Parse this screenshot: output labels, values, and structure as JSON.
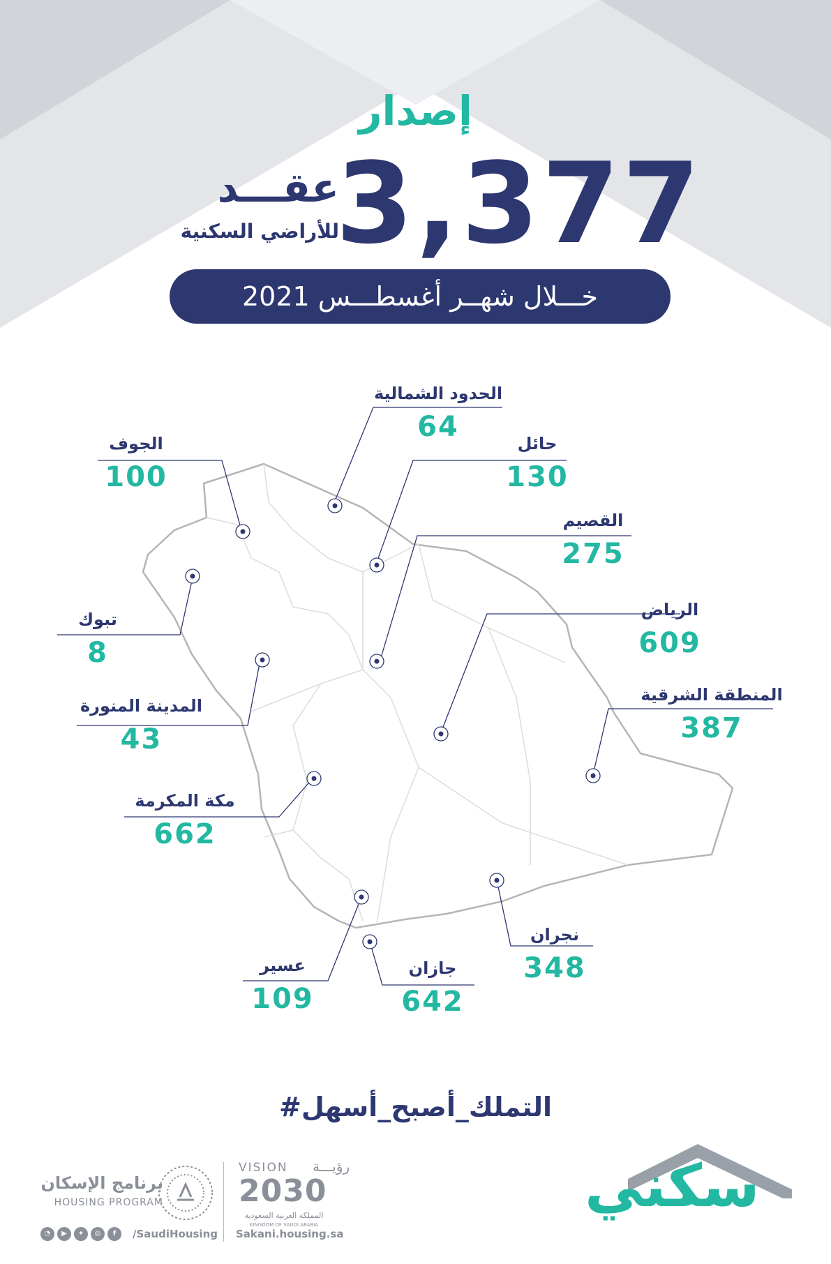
{
  "header": {
    "headline": "إصدار",
    "contracts_count": "3,377",
    "contracts_word": "عقـــد",
    "lands_label": "للأراضي السكنية",
    "period": "خـــلال شهــر أغسطـــس 2021"
  },
  "regions": [
    {
      "name": "الحدود الشمالية",
      "value": "64"
    },
    {
      "name": "الجوف",
      "value": "100"
    },
    {
      "name": "حائل",
      "value": "130"
    },
    {
      "name": "القصيم",
      "value": "275"
    },
    {
      "name": "الرياض",
      "value": "609"
    },
    {
      "name": "تبوك",
      "value": "8"
    },
    {
      "name": "المدينة المنورة",
      "value": "43"
    },
    {
      "name": "المنطقة الشرقية",
      "value": "387"
    },
    {
      "name": "مكة المكرمة",
      "value": "662"
    },
    {
      "name": "نجران",
      "value": "348"
    },
    {
      "name": "عسير",
      "value": "109"
    },
    {
      "name": "جازان",
      "value": "642"
    }
  ],
  "footer": {
    "hashtag": "#التملك_أصبح_أسهل",
    "sakani_logo_text": "سكني",
    "vision_en": "VISION",
    "vision_ar": "رؤيـــة",
    "vision_year": "2030",
    "vision_kingdom_ar": "المملكة العربية السعودية",
    "vision_kingdom_en": "KINGDOM OF SAUDI ARABIA",
    "housing_program_ar": "برنامج الإسكان",
    "housing_program_en": "HOUSING PROGRAM",
    "social_handle": "/SaudiHousing",
    "website": "Sakani.housing.sa"
  },
  "colors": {
    "navy": "#2d3770",
    "teal": "#22b8a2",
    "grey_logo": "#8a8f99",
    "map_outline": "#b0b0b0"
  }
}
